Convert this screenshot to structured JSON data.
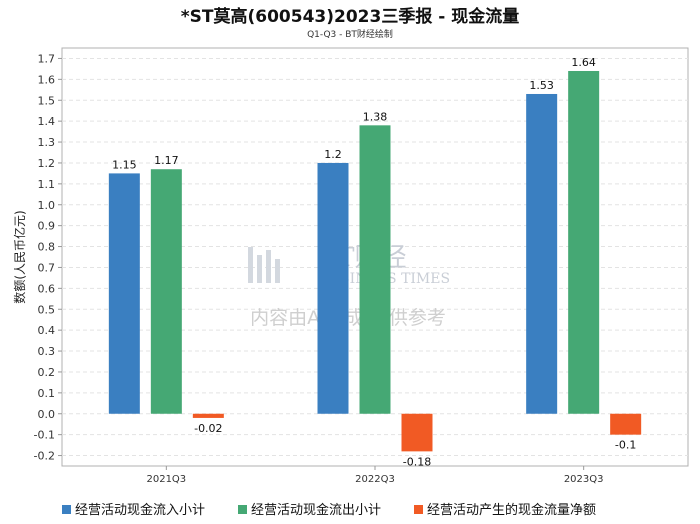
{
  "chart_data": {
    "type": "bar",
    "title": "*ST莫高(600543)2023三季报 - 现金流量",
    "subtitle": "Q1-Q3 - BT财经绘制",
    "ylabel": "数额(人民币亿元)",
    "xlabel": "",
    "categories": [
      "2021Q3",
      "2022Q3",
      "2023Q3"
    ],
    "ylim": [
      -0.25,
      1.75
    ],
    "yticks": [
      -0.2,
      -0.1,
      0.0,
      0.1,
      0.2,
      0.3,
      0.4,
      0.5,
      0.6,
      0.7,
      0.8,
      0.9,
      1.0,
      1.1,
      1.2,
      1.3,
      1.4,
      1.5,
      1.6,
      1.7
    ],
    "grid": true,
    "legend_position": "bottom",
    "series": [
      {
        "name": "经营活动现金流入小计",
        "color": "#3a7fc1",
        "values": [
          1.15,
          1.2,
          1.53
        ],
        "labels": [
          "1.15",
          "1.2",
          "1.53"
        ]
      },
      {
        "name": "经营活动现金流出小计",
        "color": "#45a874",
        "values": [
          1.17,
          1.38,
          1.64
        ],
        "labels": [
          "1.17",
          "1.38",
          "1.64"
        ]
      },
      {
        "name": "经营活动产生的现金流量净额",
        "color": "#f15a24",
        "values": [
          -0.02,
          -0.18,
          -0.1
        ],
        "labels": [
          "-0.02",
          "-0.18",
          "-0.1"
        ]
      }
    ]
  },
  "watermark": {
    "brand_cn": "BT财经",
    "brand_en": "BUSINESS TIMES",
    "note": "内容由AI生成,仅供参考"
  }
}
